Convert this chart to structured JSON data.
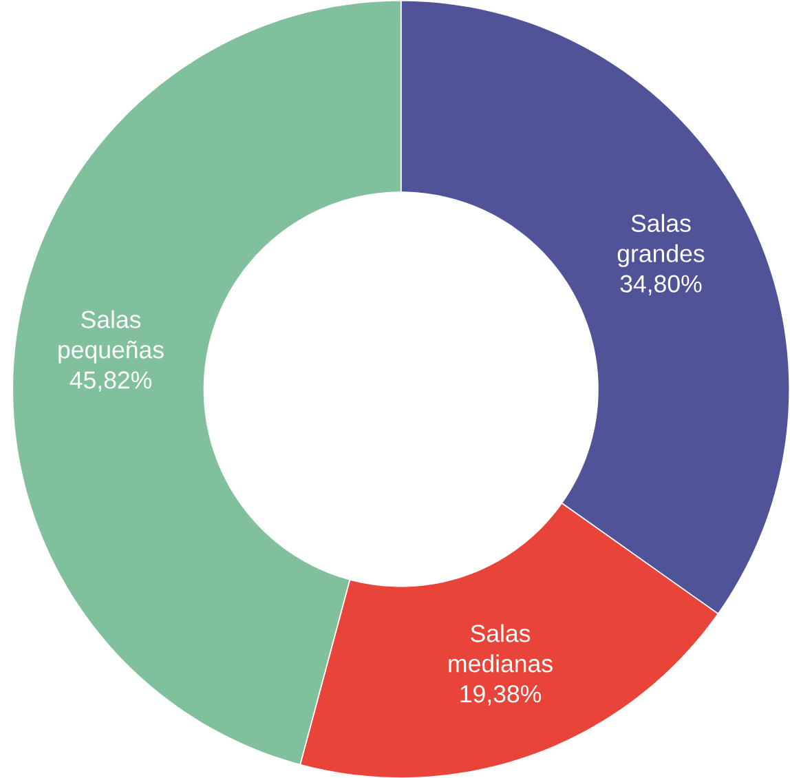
{
  "chart_data": {
    "type": "donut",
    "categories": [
      "Salas grandes",
      "Salas medianas",
      "Salas pequeñas"
    ],
    "values": [
      34.8,
      19.38,
      45.82
    ],
    "value_labels": [
      "34,80%",
      "19,38%",
      "45,82%"
    ],
    "colors": [
      "#515399",
      "#e8443a",
      "#80c09c"
    ]
  }
}
